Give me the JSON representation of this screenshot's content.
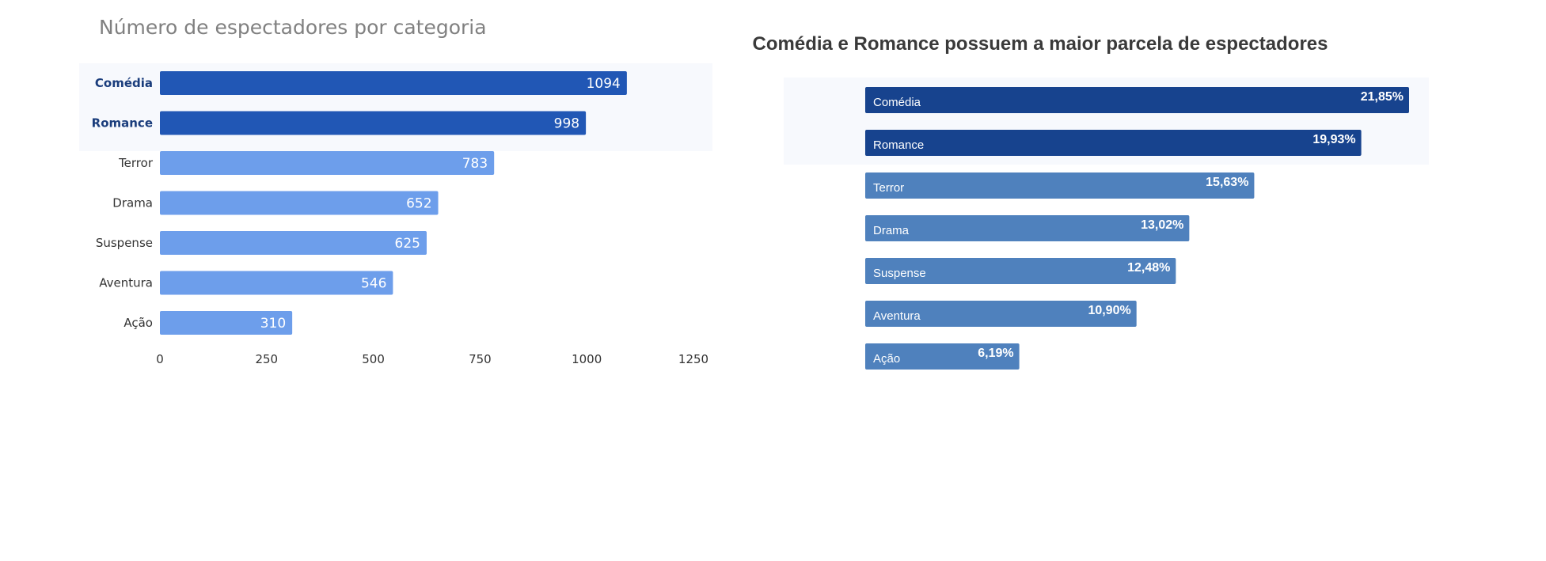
{
  "colors": {
    "left_highlight": "#2157b5",
    "left_normal": "#6d9eeb",
    "right_highlight": "#17438e",
    "right_normal": "#4f81bd",
    "highlight_band": "#f7f9fd"
  },
  "chart_data": [
    {
      "type": "bar",
      "orientation": "horizontal",
      "title": "Número de espectadores por categoria",
      "categories": [
        "Comédia",
        "Romance",
        "Terror",
        "Drama",
        "Suspense",
        "Aventura",
        "Ação"
      ],
      "values": [
        1094,
        998,
        783,
        652,
        625,
        546,
        310
      ],
      "value_labels": [
        "1094",
        "998",
        "783",
        "652",
        "625",
        "546",
        "310"
      ],
      "highlighted": [
        "Comédia",
        "Romance"
      ],
      "xlim": [
        0,
        1250
      ],
      "xticks": [
        "0",
        "250",
        "500",
        "750",
        "1000",
        "1250"
      ],
      "xlabel": "",
      "ylabel": "",
      "grid": false
    },
    {
      "type": "bar",
      "orientation": "horizontal",
      "title": "Comédia e Romance possuem a maior parcela de espectadores",
      "categories": [
        "Comédia",
        "Romance",
        "Terror",
        "Drama",
        "Suspense",
        "Aventura",
        "Ação"
      ],
      "values": [
        21.85,
        19.93,
        15.63,
        13.02,
        12.48,
        10.9,
        6.19
      ],
      "value_labels": [
        "21,85%",
        "19,93%",
        "15,63%",
        "13,02%",
        "12,48%",
        "10,90%",
        "6,19%"
      ],
      "highlighted": [
        "Comédia",
        "Romance"
      ],
      "grid": false
    }
  ]
}
